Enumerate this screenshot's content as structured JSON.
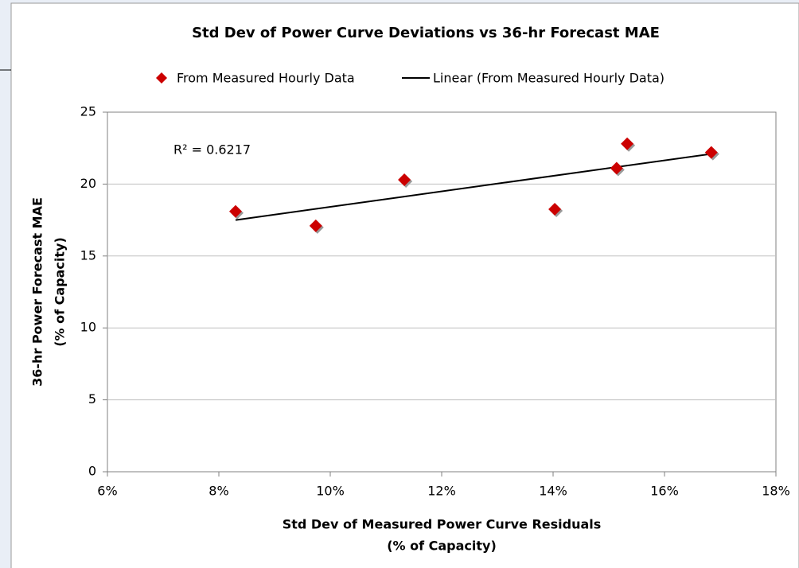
{
  "chart_data": {
    "type": "scatter",
    "title": "Std Dev of Power Curve Deviations  vs 36-hr Forecast MAE",
    "x_label": [
      "Std Dev of Measured Power Curve Residuals",
      "(% of Capacity)"
    ],
    "y_label": [
      "36-hr Power Forecast MAE",
      "(% of Capacity)"
    ],
    "annotation": "R² = 0.6217",
    "series": [
      {
        "name": "From Measured Hourly Data",
        "color": "#cc0000",
        "x": [
          8.3,
          9.74,
          11.33,
          14.03,
          15.14,
          15.33,
          16.84
        ],
        "values": [
          18.1,
          17.1,
          20.3,
          18.25,
          21.1,
          22.8,
          22.2
        ]
      }
    ],
    "trendline": {
      "name": "Linear (From Measured Hourly Data)",
      "color": "#000000",
      "x": [
        8.3,
        16.84
      ],
      "values": [
        17.5,
        22.1
      ]
    },
    "xlim": [
      6,
      18
    ],
    "xticks": [
      {
        "value": 6,
        "label": "6%"
      },
      {
        "value": 8,
        "label": "8%"
      },
      {
        "value": 10,
        "label": "10%"
      },
      {
        "value": 12,
        "label": "12%"
      },
      {
        "value": 14,
        "label": "14%"
      },
      {
        "value": 16,
        "label": "16%"
      },
      {
        "value": 18,
        "label": "18%"
      }
    ],
    "ylim": [
      0,
      25
    ],
    "yticks": [
      0,
      5,
      10,
      15,
      20,
      25
    ],
    "grid": true
  }
}
